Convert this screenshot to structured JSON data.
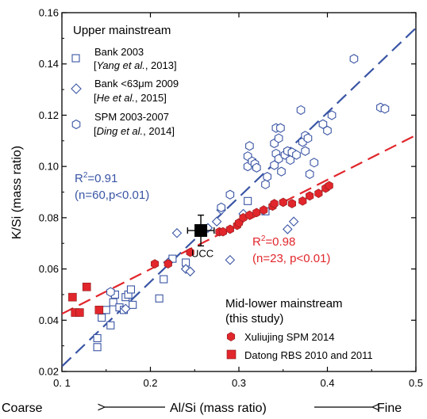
{
  "colors": {
    "blue": "#3a55a4",
    "red": "#e1262c",
    "black": "#000000"
  },
  "chart_data": {
    "type": "scatter",
    "xlim": [
      0.1,
      0.5
    ],
    "ylim": [
      0.02,
      0.16
    ],
    "x_ticks": [
      "0. 1",
      "0.2",
      "0.3",
      "0.4",
      "0.5"
    ],
    "y_ticks": [
      "0.02",
      "0.04",
      "0.06",
      "0.08",
      "0.10",
      "0.12",
      "0.14",
      "0.16"
    ],
    "ylabel": "K/Si (mass ratio)",
    "xlabel": {
      "left": "Coarse",
      "center": "Al/Si (mass ratio)",
      "right": "Fine"
    },
    "legend_upper": {
      "header": "Upper mainstream",
      "entries": [
        {
          "line1": "Bank 2003",
          "line2_open": "[",
          "line2_italic": "Yang et al.",
          "line2_rest": ", 2013]",
          "marker": "square-open"
        },
        {
          "line1": "Bank <63μm 2009",
          "line2_open": "[",
          "line2_italic": "He et al.",
          "line2_rest": ", 2015]",
          "marker": "diamond-open"
        },
        {
          "line1": "SPM 2003-2007",
          "line2_open": "[",
          "line2_italic": "Ding et al.",
          "line2_rest": ", 2014]",
          "marker": "hexagon-open"
        }
      ]
    },
    "legend_lower": {
      "header1": "Mid-lower mainstream",
      "header2": "(this study)",
      "entries": [
        {
          "label": "Xuliujing SPM 2014",
          "marker": "hexagon-filled"
        },
        {
          "label": "Datong RBS 2010 and 2011",
          "marker": "square-filled"
        }
      ]
    },
    "fits": [
      {
        "color": "blue",
        "x0": 0.1,
        "y0": 0.022,
        "x1": 0.5,
        "y1": 0.154,
        "r2_base": "R",
        "r2_sup": "2",
        "r2_value": "=0.91",
        "stats": "(n=60,p<0.01)"
      },
      {
        "color": "red",
        "x0": 0.1,
        "y0": 0.0425,
        "x1": 0.5,
        "y1": 0.1122,
        "r2_base": "R",
        "r2_sup": "2",
        "r2_value": "=0.98",
        "stats": "(n=23, p<0.01)"
      }
    ],
    "ucc": {
      "label": "UCC",
      "x": 0.257,
      "y": 0.075,
      "xerr": 0.015,
      "yerr": 0.006
    },
    "series": [
      {
        "marker": "square-open",
        "points": [
          [
            0.14,
            0.033
          ],
          [
            0.14,
            0.0295
          ],
          [
            0.145,
            0.041
          ],
          [
            0.15,
            0.044
          ],
          [
            0.155,
            0.038
          ],
          [
            0.158,
            0.047
          ],
          [
            0.16,
            0.05
          ],
          [
            0.165,
            0.045
          ],
          [
            0.17,
            0.044
          ],
          [
            0.172,
            0.049
          ],
          [
            0.175,
            0.05
          ],
          [
            0.178,
            0.052
          ],
          [
            0.18,
            0.046
          ],
          [
            0.21,
            0.0485
          ],
          [
            0.215,
            0.056
          ],
          [
            0.225,
            0.064
          ],
          [
            0.24,
            0.0625
          ],
          [
            0.31,
            0.0865
          ],
          [
            0.33,
            0.0825
          ]
        ]
      },
      {
        "marker": "diamond-open",
        "points": [
          [
            0.172,
            0.0445
          ],
          [
            0.22,
            0.0625
          ],
          [
            0.23,
            0.074
          ],
          [
            0.24,
            0.06
          ],
          [
            0.245,
            0.059
          ],
          [
            0.265,
            0.076
          ],
          [
            0.275,
            0.0785
          ],
          [
            0.28,
            0.083
          ],
          [
            0.29,
            0.0635
          ],
          [
            0.305,
            0.0815
          ],
          [
            0.355,
            0.0755
          ],
          [
            0.362,
            0.0785
          ]
        ]
      },
      {
        "marker": "hexagon-open",
        "points": [
          [
            0.155,
            0.051
          ],
          [
            0.28,
            0.084
          ],
          [
            0.29,
            0.089
          ],
          [
            0.31,
            0.1
          ],
          [
            0.31,
            0.104
          ],
          [
            0.312,
            0.108
          ],
          [
            0.315,
            0.102
          ],
          [
            0.318,
            0.101
          ],
          [
            0.32,
            0.0995
          ],
          [
            0.33,
            0.093
          ],
          [
            0.332,
            0.096
          ],
          [
            0.34,
            0.1005
          ],
          [
            0.342,
            0.105
          ],
          [
            0.345,
            0.103
          ],
          [
            0.34,
            0.109
          ],
          [
            0.345,
            0.111
          ],
          [
            0.342,
            0.115
          ],
          [
            0.347,
            0.115
          ],
          [
            0.348,
            0.098
          ],
          [
            0.352,
            0.1045
          ],
          [
            0.355,
            0.106
          ],
          [
            0.358,
            0.1025
          ],
          [
            0.36,
            0.1055
          ],
          [
            0.365,
            0.1045
          ],
          [
            0.37,
            0.122
          ],
          [
            0.372,
            0.1095
          ],
          [
            0.375,
            0.112
          ],
          [
            0.378,
            0.111
          ],
          [
            0.375,
            0.106
          ],
          [
            0.38,
            0.097
          ],
          [
            0.385,
            0.1015
          ],
          [
            0.395,
            0.1165
          ],
          [
            0.4,
            0.114
          ],
          [
            0.405,
            0.12
          ],
          [
            0.43,
            0.142
          ],
          [
            0.46,
            0.123
          ],
          [
            0.465,
            0.1225
          ]
        ]
      },
      {
        "marker": "hexagon-filled",
        "points": [
          [
            0.205,
            0.062
          ],
          [
            0.22,
            0.062
          ],
          [
            0.245,
            0.0665
          ],
          [
            0.278,
            0.0745
          ],
          [
            0.282,
            0.0745
          ],
          [
            0.29,
            0.0755
          ],
          [
            0.298,
            0.077
          ],
          [
            0.3,
            0.078
          ],
          [
            0.305,
            0.08
          ],
          [
            0.312,
            0.081
          ],
          [
            0.32,
            0.082
          ],
          [
            0.328,
            0.083
          ],
          [
            0.338,
            0.0845
          ],
          [
            0.34,
            0.0855
          ],
          [
            0.35,
            0.086
          ],
          [
            0.36,
            0.0855
          ],
          [
            0.372,
            0.0865
          ],
          [
            0.38,
            0.0885
          ],
          [
            0.39,
            0.0895
          ],
          [
            0.398,
            0.0915
          ],
          [
            0.402,
            0.0925
          ]
        ]
      },
      {
        "marker": "square-filled",
        "points": [
          [
            0.112,
            0.049
          ],
          [
            0.115,
            0.043
          ],
          [
            0.12,
            0.043
          ],
          [
            0.128,
            0.053
          ],
          [
            0.142,
            0.044
          ]
        ]
      }
    ]
  }
}
